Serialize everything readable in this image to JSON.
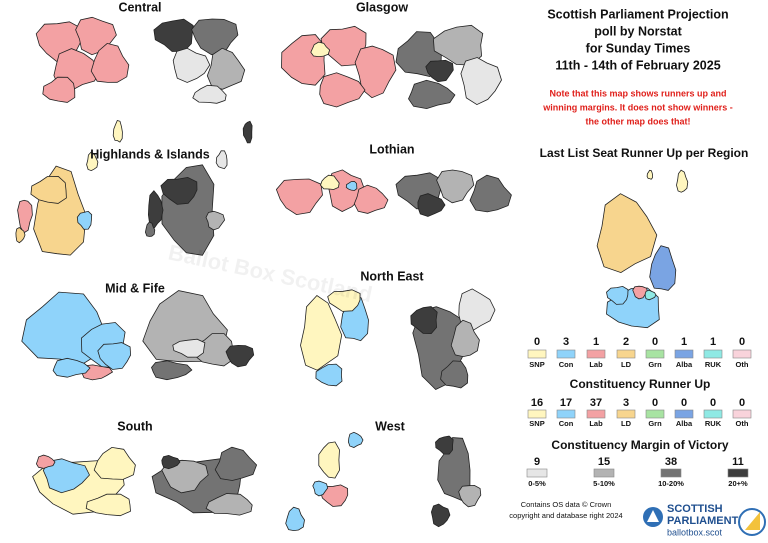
{
  "title": [
    "Scottish Parliament Projection",
    "poll by Norstat",
    "for Sunday Times",
    "11th - 14th of February 2025"
  ],
  "note": [
    "Note that this map shows runners up and",
    "winning margins. It does not show winners -",
    "the other map does that!"
  ],
  "watermark": "Ballot Box Scotland",
  "regions": [
    "Central",
    "Glasgow",
    "Highlands & Islands",
    "Lothian",
    "Mid & Fife",
    "North East",
    "South",
    "West"
  ],
  "list_runner_up": {
    "title": "Last List Seat Runner Up per Region",
    "items": [
      {
        "label": "SNP",
        "count": 0,
        "color": "#fff6bf"
      },
      {
        "label": "Con",
        "count": 3,
        "color": "#8fd3fa"
      },
      {
        "label": "Lab",
        "count": 1,
        "color": "#f3a1a3"
      },
      {
        "label": "LD",
        "count": 2,
        "color": "#f7d58e"
      },
      {
        "label": "Grn",
        "count": 0,
        "color": "#a8e3a2"
      },
      {
        "label": "Alba",
        "count": 1,
        "color": "#7aa4e3"
      },
      {
        "label": "RUK",
        "count": 1,
        "color": "#8fe9e4"
      },
      {
        "label": "Oth",
        "count": 0,
        "color": "#f9d3db"
      }
    ]
  },
  "constituency_runner_up": {
    "title": "Constituency Runner Up",
    "items": [
      {
        "label": "SNP",
        "count": 16,
        "color": "#fff6bf"
      },
      {
        "label": "Con",
        "count": 17,
        "color": "#8fd3fa"
      },
      {
        "label": "Lab",
        "count": 37,
        "color": "#f3a1a3"
      },
      {
        "label": "LD",
        "count": 3,
        "color": "#f7d58e"
      },
      {
        "label": "Grn",
        "count": 0,
        "color": "#a8e3a2"
      },
      {
        "label": "Alba",
        "count": 0,
        "color": "#7aa4e3"
      },
      {
        "label": "RUK",
        "count": 0,
        "color": "#8fe9e4"
      },
      {
        "label": "Oth",
        "count": 0,
        "color": "#f9d3db"
      }
    ]
  },
  "margin": {
    "title": "Constituency Margin of Victory",
    "items": [
      {
        "label": "0-5%",
        "count": 9,
        "color": "#e6e6e6"
      },
      {
        "label": "5-10%",
        "count": 15,
        "color": "#b3b3b3"
      },
      {
        "label": "10-20%",
        "count": 38,
        "color": "#737373"
      },
      {
        "label": "20+%",
        "count": 11,
        "color": "#3d3d3d"
      }
    ]
  },
  "footer": [
    "Contains OS data © Crown",
    "copyright and database right 2024"
  ],
  "logo": [
    "SCOTTISH",
    "PARLIAMENT",
    "ballotbox.scot"
  ]
}
